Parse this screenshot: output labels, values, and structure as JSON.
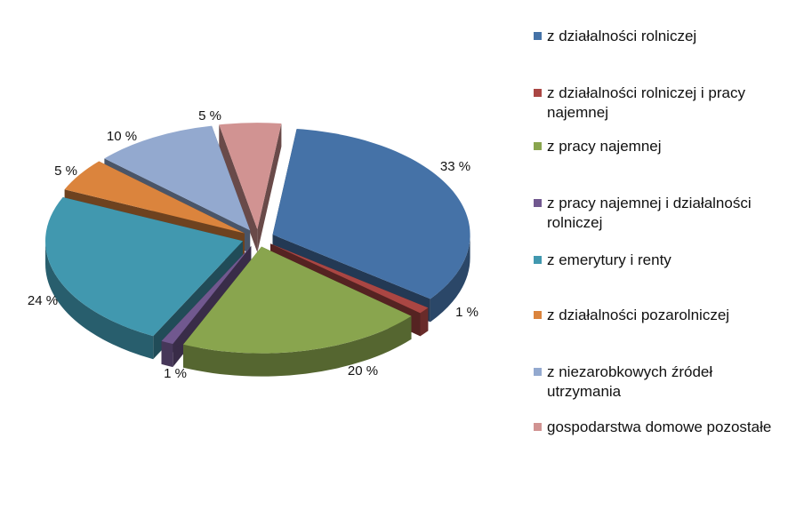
{
  "chart_data": {
    "type": "pie",
    "categories": [
      "z działalności rolniczej",
      "z działalności rolniczej i pracy najemnej",
      "z pracy najemnej",
      "z pracy najemnej i działalności rolniczej",
      "z emerytury i renty",
      "z działalności pozarolniczej",
      "z niezarobkowych źródeł utrzymania",
      "gospodarstwa domowe pozostałe"
    ],
    "values": [
      33,
      1,
      20,
      1,
      24,
      5,
      10,
      5
    ],
    "value_labels": [
      "33 %",
      "1 %",
      "20 %",
      "1 %",
      "24 %",
      "5 %",
      "10 %",
      "5 %"
    ],
    "colors": [
      "#4572A7",
      "#AA4643",
      "#89A54E",
      "#71588F",
      "#4198AF",
      "#DB843D",
      "#93A9CF",
      "#D19392"
    ],
    "legend_position": "right",
    "exploded": true,
    "three_d": true
  }
}
